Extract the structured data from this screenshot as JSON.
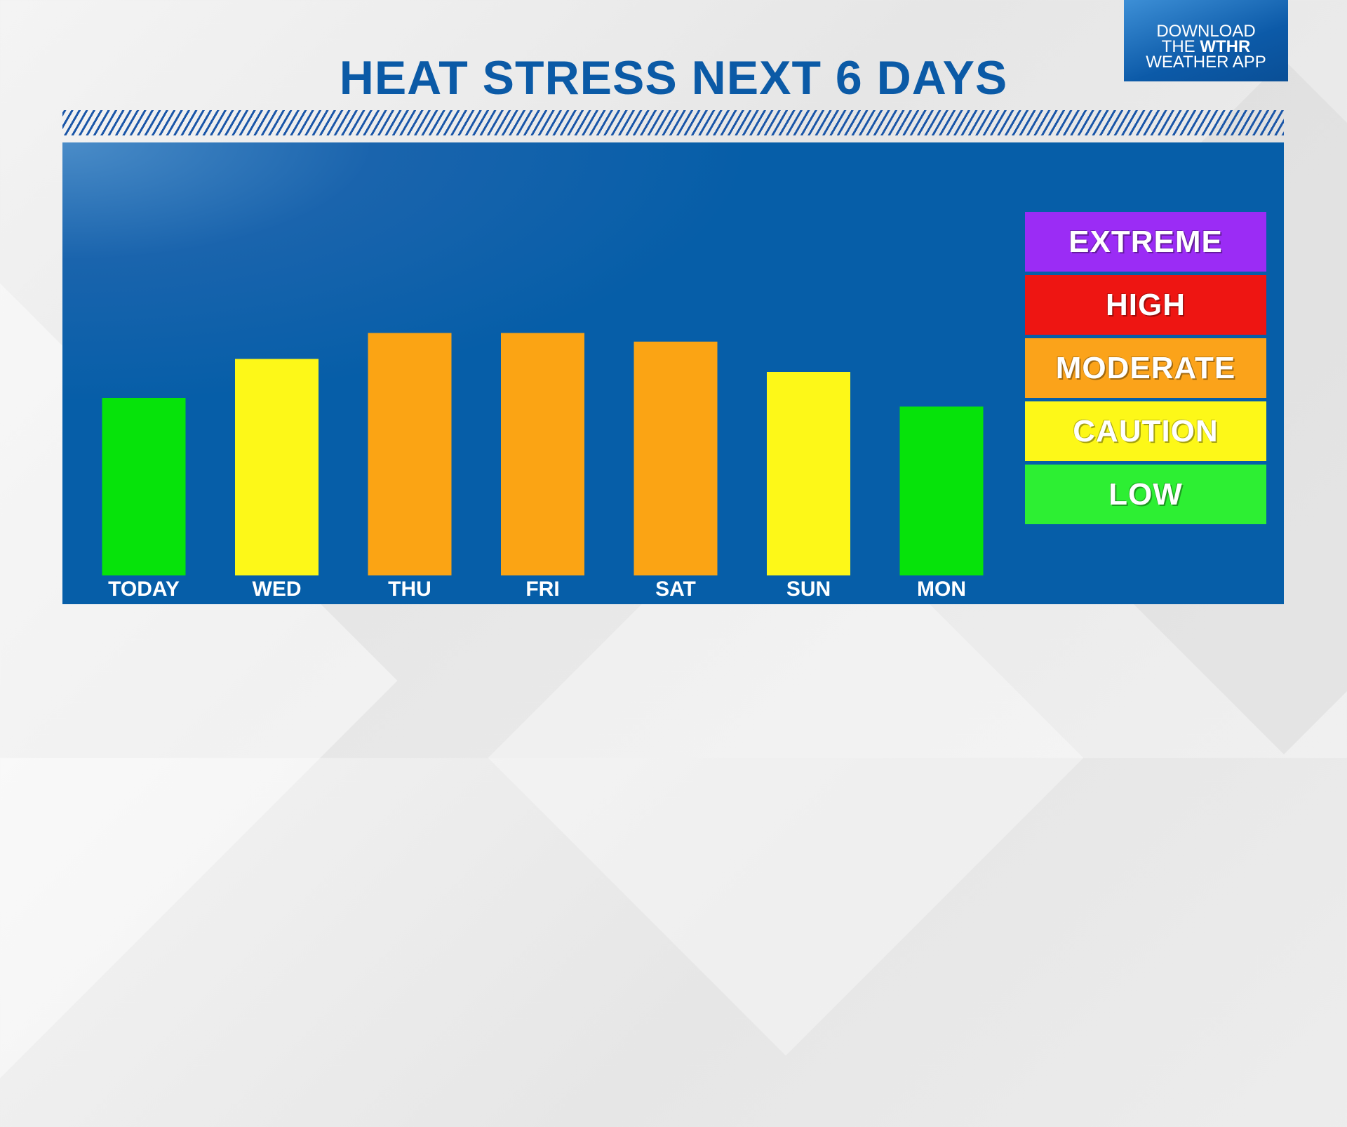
{
  "header": {
    "title": "HEAT STRESS NEXT 6 DAYS",
    "promo_line1": "DOWNLOAD",
    "promo_line2_prefix": "THE ",
    "promo_line2_brand": "WTHR",
    "promo_line3": "WEATHER APP"
  },
  "legend": [
    {
      "label": "EXTREME",
      "color": "#9b2cf5"
    },
    {
      "label": "HIGH",
      "color": "#ee1512"
    },
    {
      "label": "MODERATE",
      "color": "#fba31a"
    },
    {
      "label": "CAUTION",
      "color": "#fdf818"
    },
    {
      "label": "LOW",
      "color": "#2def33"
    }
  ],
  "chart_data": {
    "type": "bar",
    "categories": [
      "TODAY",
      "WED",
      "THU",
      "FRI",
      "SAT",
      "SUN",
      "MON"
    ],
    "values": [
      0.41,
      0.5,
      0.56,
      0.56,
      0.54,
      0.47,
      0.39
    ],
    "value_scale": "relative bar height, fraction of plot area",
    "levels": [
      "LOW",
      "CAUTION",
      "MODERATE",
      "MODERATE",
      "MODERATE",
      "CAUTION",
      "LOW"
    ],
    "bar_colors": [
      "#06e30a",
      "#fdf818",
      "#fba414",
      "#fba414",
      "#fba414",
      "#fdf818",
      "#06e30a"
    ],
    "ylim": [
      0,
      1
    ],
    "grid": false,
    "legend_position": "right"
  }
}
